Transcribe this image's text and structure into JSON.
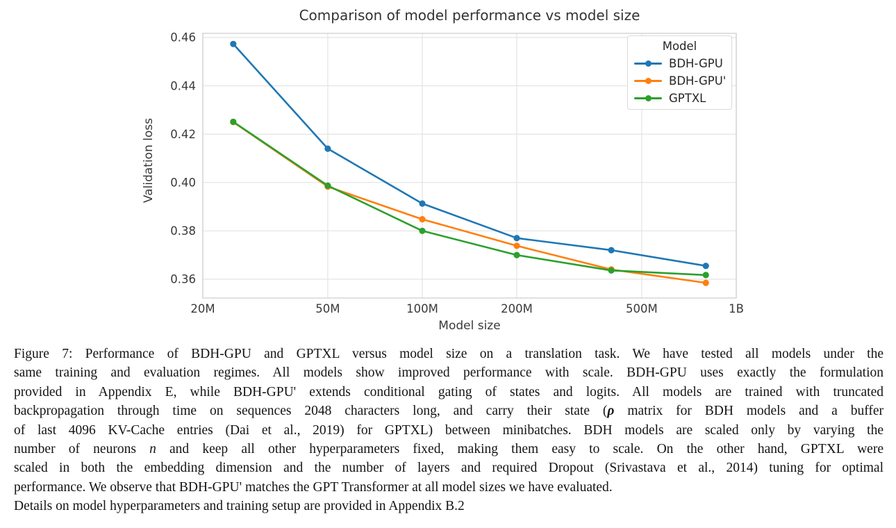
{
  "chart_data": {
    "type": "line",
    "title": "Comparison of model performance vs model size",
    "xlabel": "Model size",
    "ylabel": "Validation loss",
    "x_scale": "log",
    "grid": true,
    "xlim": [
      20000000,
      1000000000
    ],
    "ylim": [
      0.3522,
      0.4617
    ],
    "x": [
      25000000,
      50000000,
      100000000,
      200000000,
      400000000,
      800000000
    ],
    "x_ticks": [
      {
        "value": 20000000,
        "label": "20M"
      },
      {
        "value": 50000000,
        "label": "50M"
      },
      {
        "value": 100000000,
        "label": "100M"
      },
      {
        "value": 200000000,
        "label": "200M"
      },
      {
        "value": 500000000,
        "label": "500M"
      },
      {
        "value": 1000000000,
        "label": "1B"
      }
    ],
    "y_ticks": [
      {
        "value": 0.46,
        "label": "0.46"
      },
      {
        "value": 0.44,
        "label": "0.44"
      },
      {
        "value": 0.42,
        "label": "0.42"
      },
      {
        "value": 0.4,
        "label": "0.40"
      },
      {
        "value": 0.38,
        "label": "0.38"
      },
      {
        "value": 0.36,
        "label": "0.36"
      }
    ],
    "legend": {
      "title": "Model",
      "position": "upper right"
    },
    "series": [
      {
        "name": "BDH-GPU",
        "color": "#1f77b4",
        "values": [
          0.4573,
          0.414,
          0.3913,
          0.377,
          0.372,
          0.3655
        ]
      },
      {
        "name": "BDH-GPU'",
        "color": "#ff7f0e",
        "values": [
          0.425,
          0.3983,
          0.3848,
          0.3738,
          0.364,
          0.3585
        ]
      },
      {
        "name": "GPTXL",
        "color": "#2ca02c",
        "values": [
          0.4251,
          0.3987,
          0.38,
          0.37,
          0.3636,
          0.3617
        ]
      }
    ]
  },
  "caption": {
    "line1": "Figure 7: Performance of BDH-GPU and GPTXL versus model size on a translation task. We have tested all models under the",
    "line2": "same training and evaluation regimes. All models show improved performance with scale. BDH-GPU uses exactly the formulation",
    "line3": "provided in Appendix E, while BDH-GPU' extends conditional gating of states and logits. All models are trained with truncated",
    "line4_pre": "backpropagation through time on sequences 2048 characters long, and carry their state (",
    "line4_rho": "ρ",
    "line4_post": " matrix for BDH models and a buffer",
    "line5": "of last 4096 KV-Cache entries (Dai et al., 2019) for GPTXL) between minibatches. BDH models are scaled only by varying the",
    "line6_pre": "number of neurons ",
    "line6_n": "n",
    "line6_post": " and keep all other hyperparameters fixed, making them easy to scale. On the other hand, GPTXL were",
    "line7": "scaled in both the embedding dimension and the number of layers and required Dropout (Srivastava et al., 2014) tuning for optimal",
    "line8": "performance. We observe that BDH-GPU' matches the GPT Transformer at all model sizes we have evaluated.",
    "line9": "Details on model hyperparameters and training setup are provided in Appendix B.2"
  }
}
